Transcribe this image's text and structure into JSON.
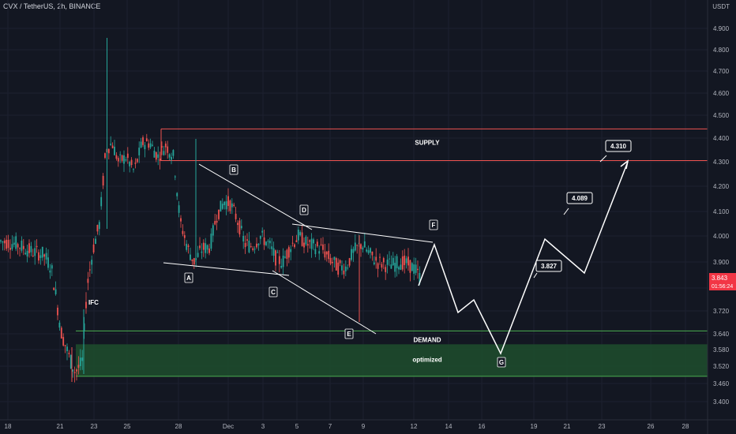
{
  "header": {
    "symbol_line": "CVX / TetherUS, 2h, BINANCE",
    "currency": "USDT"
  },
  "current_price": {
    "value": "3.843",
    "timer": "01:56:24"
  },
  "colors": {
    "background": "#131722",
    "up": "#26a69a",
    "down": "#ef5350",
    "zone_line_supply": "#ef5350",
    "zone_line_demand": "#26a69a",
    "demand_fill": "#1e4a2c",
    "drawing": "#ffffff",
    "price_tag": "#f23645"
  },
  "chart_data": {
    "type": "candlestick",
    "x_ticks": [
      "18",
      "21",
      "23",
      "25",
      "28",
      "Dec",
      "3",
      "5",
      "7",
      "9",
      "12",
      "14",
      "16",
      "19",
      "21",
      "23",
      "26",
      "28"
    ],
    "y_ticks": [
      "4.900",
      "4.800",
      "4.700",
      "4.600",
      "4.500",
      "4.400",
      "4.300",
      "4.200",
      "4.100",
      "4.000",
      "3.900",
      "3.800",
      "3.720",
      "3.640",
      "3.580",
      "3.520",
      "3.460",
      "3.400"
    ],
    "ylim": [
      3.37,
      4.95
    ],
    "zones": [
      {
        "label": "SUPPLY",
        "top": 4.44,
        "bottom": 4.305,
        "kind": "supply"
      },
      {
        "label": "DEMAND",
        "top": 3.65,
        "bottom": 3.6,
        "kind": "demand_line"
      },
      {
        "label": "optimized",
        "top": 3.6,
        "bottom": 3.485,
        "kind": "demand"
      }
    ],
    "wave_labels": [
      "A",
      "B",
      "C",
      "D",
      "E",
      "F",
      "G"
    ],
    "labels": {
      "ifc": "IFC"
    },
    "targets": [
      "3.827",
      "4.089",
      "4.310"
    ]
  }
}
